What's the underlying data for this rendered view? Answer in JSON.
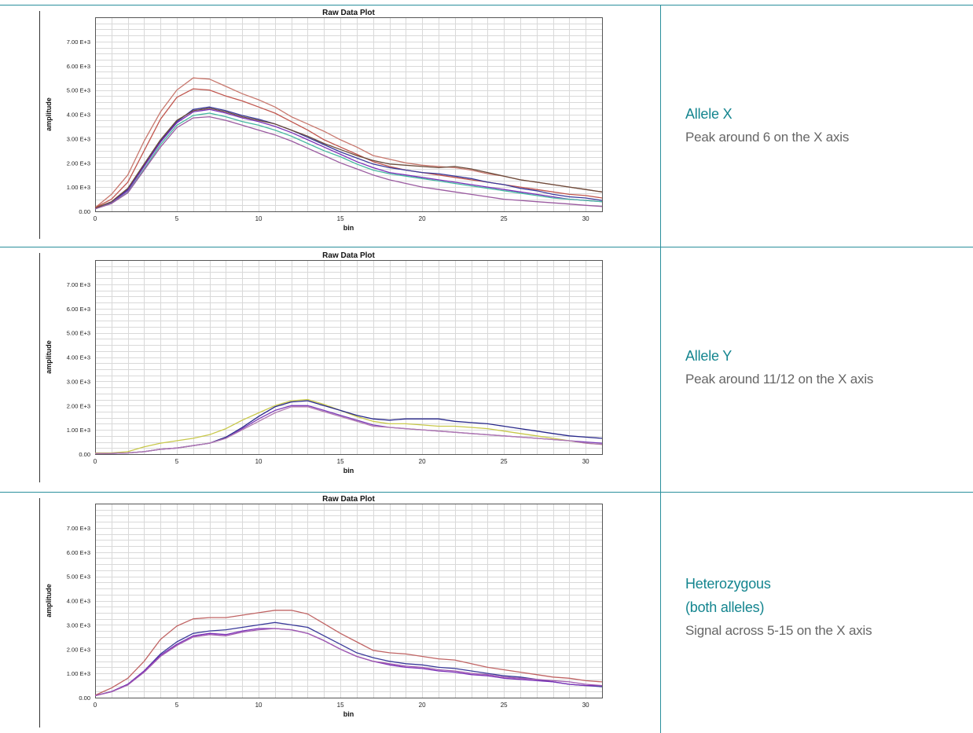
{
  "colors": {
    "accent": "#14858f",
    "rule": "#2a8f9c",
    "body_text": "#666666"
  },
  "panels": [
    {
      "label": "Allele X",
      "note": "Peak around 6 on the X axis"
    },
    {
      "label": "Allele Y",
      "note": "Peak around 11/12 on the X axis"
    },
    {
      "label_lines": [
        "Heterozygous",
        "(both alleles)"
      ],
      "note": "Signal across 5-15 on the X axis"
    }
  ],
  "chart_data": [
    {
      "type": "line",
      "title": "Raw Data Plot",
      "xlabel": "bin",
      "ylabel": "amplitude",
      "xlim": [
        0,
        31
      ],
      "ylim": [
        0,
        8000
      ],
      "x_ticks": [
        "0",
        "5",
        "10",
        "15",
        "20",
        "25",
        "30"
      ],
      "y_ticks": [
        "0.00",
        "1.00 E+3",
        "2.00 E+3",
        "3.00 E+3",
        "4.00 E+3",
        "5.00 E+3",
        "6.00 E+3",
        "7.00 E+3"
      ],
      "grid": true,
      "x": [
        0,
        1,
        2,
        3,
        4,
        5,
        6,
        7,
        8,
        9,
        10,
        11,
        12,
        13,
        14,
        15,
        16,
        17,
        18,
        19,
        20,
        21,
        22,
        23,
        24,
        25,
        26,
        27,
        28,
        29,
        30,
        31
      ],
      "series": [
        {
          "color": "#c8786e",
          "values": [
            150,
            700,
            1500,
            2900,
            4100,
            5000,
            5500,
            5450,
            5150,
            4850,
            4600,
            4300,
            3900,
            3600,
            3300,
            2950,
            2650,
            2300,
            2150,
            2000,
            1900,
            1850,
            1800,
            1700,
            1550,
            1450,
            1300,
            1200,
            1100,
            1000,
            900,
            800
          ]
        },
        {
          "color": "#c0564e",
          "values": [
            150,
            500,
            1200,
            2500,
            3800,
            4700,
            5050,
            5000,
            4750,
            4550,
            4300,
            4050,
            3700,
            3350,
            2950,
            2650,
            2350,
            2050,
            1850,
            1700,
            1600,
            1500,
            1400,
            1300,
            1200,
            1100,
            1000,
            900,
            800,
            700,
            650,
            550
          ]
        },
        {
          "color": "#3a3a9a",
          "values": [
            120,
            380,
            900,
            1900,
            2900,
            3700,
            4200,
            4300,
            4150,
            3950,
            3800,
            3600,
            3350,
            3050,
            2750,
            2450,
            2200,
            1950,
            1800,
            1700,
            1600,
            1550,
            1450,
            1350,
            1200,
            1100,
            950,
            850,
            700,
            600,
            550,
            450
          ]
        },
        {
          "color": "#7a2fb8",
          "values": [
            110,
            360,
            850,
            1850,
            2850,
            3650,
            4100,
            4200,
            4050,
            3850,
            3700,
            3500,
            3250,
            2950,
            2650,
            2350,
            2050,
            1800,
            1600,
            1500,
            1400,
            1300,
            1200,
            1100,
            1000,
            900,
            800,
            700,
            600,
            500,
            450,
            400
          ]
        },
        {
          "color": "#45b8a0",
          "values": [
            100,
            330,
            780,
            1750,
            2750,
            3550,
            3950,
            4050,
            3900,
            3700,
            3550,
            3350,
            3100,
            2800,
            2500,
            2250,
            1950,
            1700,
            1550,
            1450,
            1350,
            1250,
            1150,
            1050,
            950,
            850,
            750,
            650,
            550,
            500,
            450,
            400
          ]
        },
        {
          "color": "#6a4a3a",
          "values": [
            130,
            400,
            950,
            1950,
            2950,
            3750,
            4150,
            4250,
            4100,
            3900,
            3750,
            3600,
            3350,
            3100,
            2800,
            2550,
            2300,
            2100,
            1950,
            1900,
            1850,
            1800,
            1850,
            1750,
            1600,
            1450,
            1300,
            1200,
            1100,
            1000,
            900,
            800
          ]
        },
        {
          "color": "#9a5aa0",
          "values": [
            100,
            320,
            760,
            1700,
            2650,
            3450,
            3850,
            3900,
            3750,
            3550,
            3350,
            3150,
            2900,
            2600,
            2300,
            2000,
            1750,
            1500,
            1300,
            1150,
            1000,
            900,
            800,
            700,
            600,
            500,
            450,
            400,
            350,
            300,
            250,
            200
          ]
        }
      ]
    },
    {
      "type": "line",
      "title": "Raw Data Plot",
      "xlabel": "bin",
      "ylabel": "amplitude",
      "xlim": [
        0,
        31
      ],
      "ylim": [
        0,
        8000
      ],
      "x_ticks": [
        "0",
        "5",
        "10",
        "15",
        "20",
        "25",
        "30"
      ],
      "y_ticks": [
        "0.00",
        "1.00 E+3",
        "2.00 E+3",
        "3.00 E+3",
        "4.00 E+3",
        "5.00 E+3",
        "6.00 E+3",
        "7.00 E+3"
      ],
      "grid": true,
      "x": [
        0,
        1,
        2,
        3,
        4,
        5,
        6,
        7,
        8,
        9,
        10,
        11,
        12,
        13,
        14,
        15,
        16,
        17,
        18,
        19,
        20,
        21,
        22,
        23,
        24,
        25,
        26,
        27,
        28,
        29,
        30,
        31
      ],
      "series": [
        {
          "color": "#c8c84a",
          "values": [
            50,
            50,
            100,
            300,
            450,
            550,
            650,
            800,
            1050,
            1400,
            1700,
            2000,
            2200,
            2250,
            2050,
            1800,
            1550,
            1350,
            1250,
            1250,
            1200,
            1150,
            1150,
            1100,
            1050,
            950,
            850,
            750,
            650,
            550,
            450,
            400
          ]
        },
        {
          "color": "#27278a",
          "values": [
            20,
            30,
            50,
            100,
            200,
            250,
            350,
            450,
            700,
            1100,
            1550,
            1950,
            2150,
            2200,
            2000,
            1800,
            1600,
            1450,
            1400,
            1450,
            1450,
            1450,
            1350,
            1300,
            1250,
            1150,
            1050,
            950,
            850,
            750,
            700,
            650
          ]
        },
        {
          "color": "#7a3ab8",
          "values": [
            20,
            30,
            50,
            100,
            200,
            250,
            350,
            450,
            650,
            1050,
            1450,
            1800,
            2000,
            2000,
            1800,
            1600,
            1400,
            1200,
            1100,
            1050,
            1000,
            950,
            900,
            850,
            800,
            750,
            700,
            650,
            600,
            550,
            500,
            450
          ]
        },
        {
          "color": "#b07ab0",
          "values": [
            20,
            30,
            50,
            100,
            200,
            250,
            350,
            450,
            650,
            1000,
            1350,
            1700,
            1950,
            1950,
            1750,
            1550,
            1350,
            1150,
            1100,
            1050,
            1000,
            950,
            900,
            850,
            800,
            750,
            700,
            650,
            600,
            550,
            450,
            400
          ]
        }
      ]
    },
    {
      "type": "line",
      "title": "Raw Data Plot",
      "xlabel": "bin",
      "ylabel": "amplitude",
      "xlim": [
        0,
        31
      ],
      "ylim": [
        0,
        8000
      ],
      "x_ticks": [
        "0",
        "5",
        "10",
        "15",
        "20",
        "25",
        "30"
      ],
      "y_ticks": [
        "0.00",
        "1.00 E+3",
        "2.00 E+3",
        "3.00 E+3",
        "4.00 E+3",
        "5.00 E+3",
        "6.00 E+3",
        "7.00 E+3"
      ],
      "grid": true,
      "x": [
        0,
        1,
        2,
        3,
        4,
        5,
        6,
        7,
        8,
        9,
        10,
        11,
        12,
        13,
        14,
        15,
        16,
        17,
        18,
        19,
        20,
        21,
        22,
        23,
        24,
        25,
        26,
        27,
        28,
        29,
        30,
        31
      ],
      "series": [
        {
          "color": "#c06464",
          "values": [
            100,
            400,
            800,
            1500,
            2400,
            2950,
            3250,
            3300,
            3300,
            3400,
            3500,
            3600,
            3600,
            3450,
            3050,
            2650,
            2300,
            1950,
            1850,
            1800,
            1700,
            1600,
            1550,
            1400,
            1250,
            1150,
            1050,
            950,
            850,
            800,
            700,
            650
          ]
        },
        {
          "color": "#3a3a9a",
          "values": [
            80,
            250,
            550,
            1100,
            1800,
            2300,
            2650,
            2750,
            2800,
            2900,
            3000,
            3100,
            3000,
            2900,
            2550,
            2200,
            1850,
            1650,
            1500,
            1400,
            1350,
            1250,
            1200,
            1100,
            1000,
            900,
            850,
            750,
            650,
            550,
            500,
            450
          ]
        },
        {
          "color": "#7a2fb8",
          "values": [
            80,
            250,
            550,
            1100,
            1750,
            2200,
            2550,
            2650,
            2600,
            2750,
            2850,
            2850,
            2800,
            2650,
            2350,
            2000,
            1700,
            1500,
            1350,
            1250,
            1200,
            1100,
            1050,
            950,
            900,
            800,
            750,
            700,
            650,
            550,
            500,
            500
          ]
        },
        {
          "color": "#a05ab0",
          "values": [
            80,
            240,
            520,
            1050,
            1700,
            2150,
            2500,
            2600,
            2550,
            2700,
            2800,
            2850,
            2800,
            2650,
            2350,
            2000,
            1700,
            1500,
            1400,
            1300,
            1250,
            1150,
            1100,
            1000,
            950,
            850,
            800,
            750,
            700,
            650,
            550,
            500
          ]
        }
      ]
    }
  ]
}
